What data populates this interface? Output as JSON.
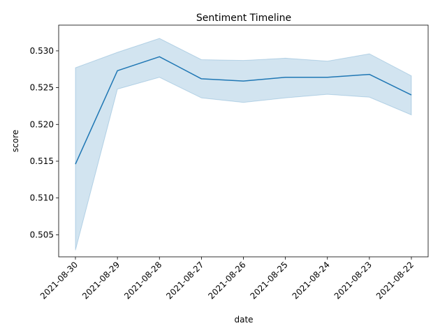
{
  "chart_data": {
    "type": "line",
    "title": "Sentiment Timeline",
    "xlabel": "date",
    "ylabel": "score",
    "x": [
      "2021-08-30",
      "2021-08-29",
      "2021-08-28",
      "2021-08-27",
      "2021-08-26",
      "2021-08-25",
      "2021-08-24",
      "2021-08-23",
      "2021-08-22"
    ],
    "series": [
      {
        "values": [
          0.5146,
          0.5273,
          0.5292,
          0.5262,
          0.5259,
          0.5264,
          0.5264,
          0.5268,
          0.524
        ],
        "ci_upper": [
          0.5277,
          0.5298,
          0.5317,
          0.5288,
          0.5287,
          0.529,
          0.5286,
          0.5296,
          0.5266
        ],
        "ci_lower": [
          0.5029,
          0.5248,
          0.5264,
          0.5236,
          0.523,
          0.5236,
          0.5241,
          0.5237,
          0.5213
        ],
        "color": "#1f77b4",
        "band_color": "#1f77b4"
      }
    ],
    "yticks": [
      "0.505",
      "0.510",
      "0.515",
      "0.520",
      "0.525",
      "0.530"
    ],
    "ylim": [
      0.502,
      0.5335
    ],
    "grid": false,
    "legend": "none"
  }
}
